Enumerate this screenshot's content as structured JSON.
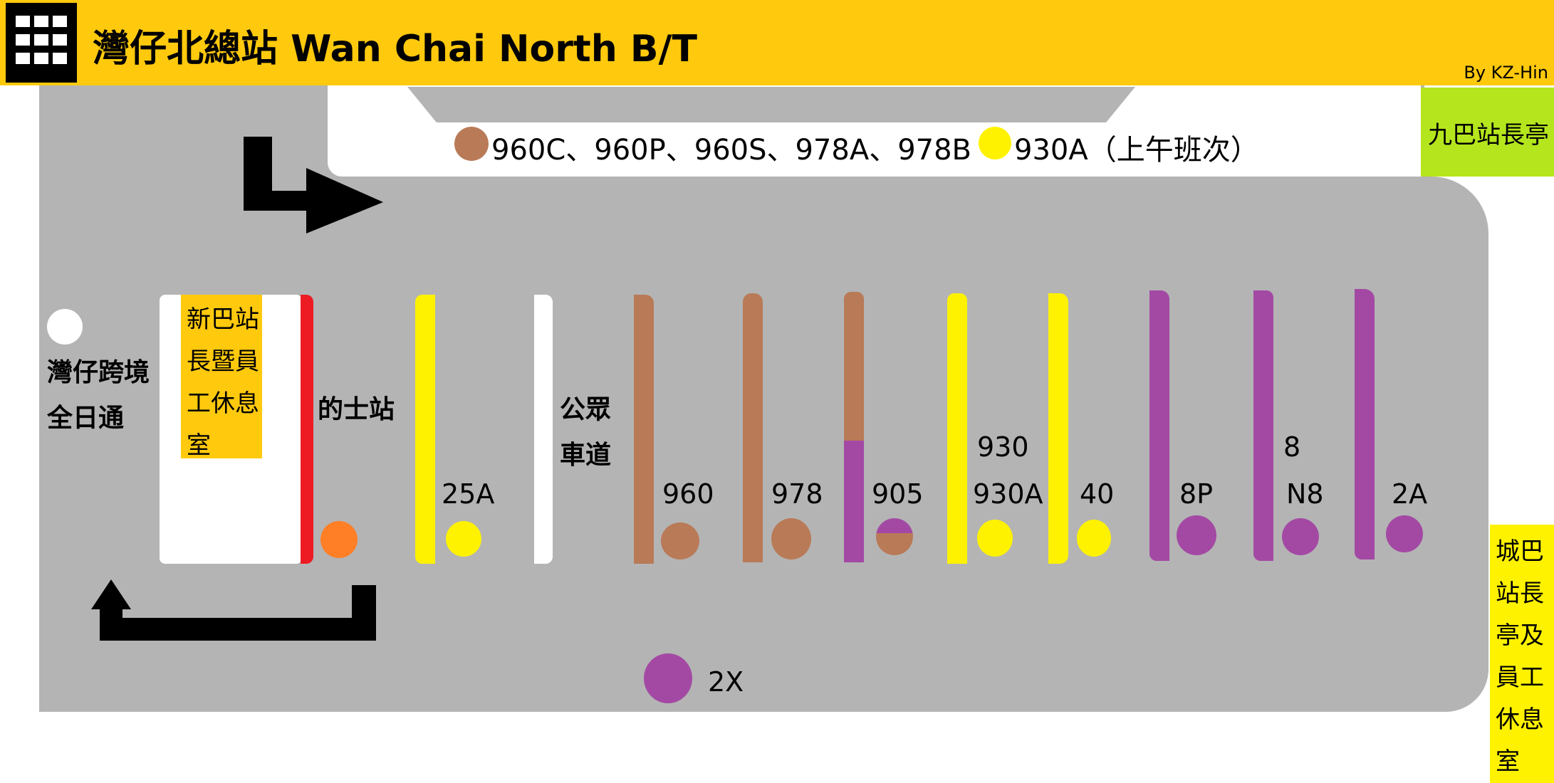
{
  "header": {
    "title": "灣仔北總站 Wan Chai North B/T",
    "byline": "By KZ-Hin",
    "icon": "building-icon"
  },
  "top_platform": {
    "routes_text": "960C、960P、960S、978A、978B",
    "routes_text_2": "930A（上午班次）"
  },
  "kiosks": {
    "kmb": "九巴站長亭",
    "ctb": "城巴站長亭及員工休息室",
    "nwfb": "新巴站長暨員工休息室"
  },
  "left": {
    "cross_border": "灣仔跨境全日通",
    "taxi": "的士站",
    "pmb_1": "公眾",
    "pmb_2": "車道"
  },
  "bays": [
    {
      "route": "25A",
      "color": "#FFF200"
    },
    {
      "route": "960",
      "color": "#B97A57"
    },
    {
      "route": "978",
      "color": "#B97A57"
    },
    {
      "route": "905",
      "color": "#B97A57"
    },
    {
      "route": "930",
      "color": "#FFF200"
    },
    {
      "route": "930A",
      "color": "#FFF200"
    },
    {
      "route": "40",
      "color": "#FFF200"
    },
    {
      "route": "8P",
      "color": "#A349A4"
    },
    {
      "route": "8",
      "color": "#A349A4"
    },
    {
      "route": "N8",
      "color": "#A349A4"
    },
    {
      "route": "2A",
      "color": "#A349A4"
    },
    {
      "route": "2X",
      "color": "#A349A4"
    }
  ],
  "colors": {
    "header": "#FFC90E",
    "road": "#B4B4B4",
    "brown": "#B97A57",
    "yellow": "#FFF200",
    "purple": "#A349A4",
    "orange": "#FF7F27",
    "red": "#ED1C24",
    "lime": "#B5E61D"
  }
}
